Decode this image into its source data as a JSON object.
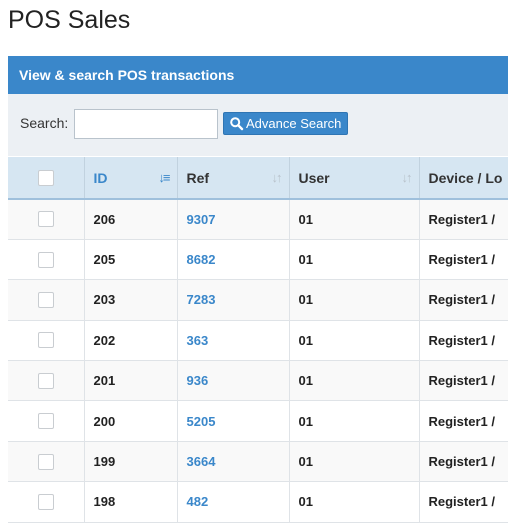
{
  "page_title": "POS Sales",
  "panel": {
    "title": "View & search POS transactions"
  },
  "search": {
    "label": "Search:",
    "value": "",
    "placeholder": "",
    "advance_button": "Advance Search",
    "advance_icon": "search-icon"
  },
  "table": {
    "columns": [
      {
        "label": "ID",
        "sort": "desc-active"
      },
      {
        "label": "Ref",
        "sort": "both"
      },
      {
        "label": "User",
        "sort": "both"
      },
      {
        "label": "Device / Lo"
      }
    ],
    "rows": [
      {
        "id": "206",
        "ref": "9307",
        "user": "01",
        "device": "Register1 /"
      },
      {
        "id": "205",
        "ref": "8682",
        "user": "01",
        "device": "Register1 /"
      },
      {
        "id": "203",
        "ref": "7283",
        "user": "01",
        "device": "Register1 /"
      },
      {
        "id": "202",
        "ref": "363",
        "user": "01",
        "device": "Register1 /"
      },
      {
        "id": "201",
        "ref": "936",
        "user": "01",
        "device": "Register1 /"
      },
      {
        "id": "200",
        "ref": "5205",
        "user": "01",
        "device": "Register1 /"
      },
      {
        "id": "199",
        "ref": "3664",
        "user": "01",
        "device": "Register1 /"
      },
      {
        "id": "198",
        "ref": "482",
        "user": "01",
        "device": "Register1 /"
      }
    ]
  },
  "colors": {
    "accent": "#3a87ca",
    "header_bg": "#d6e6f2",
    "search_bg": "#ecf0f4"
  }
}
